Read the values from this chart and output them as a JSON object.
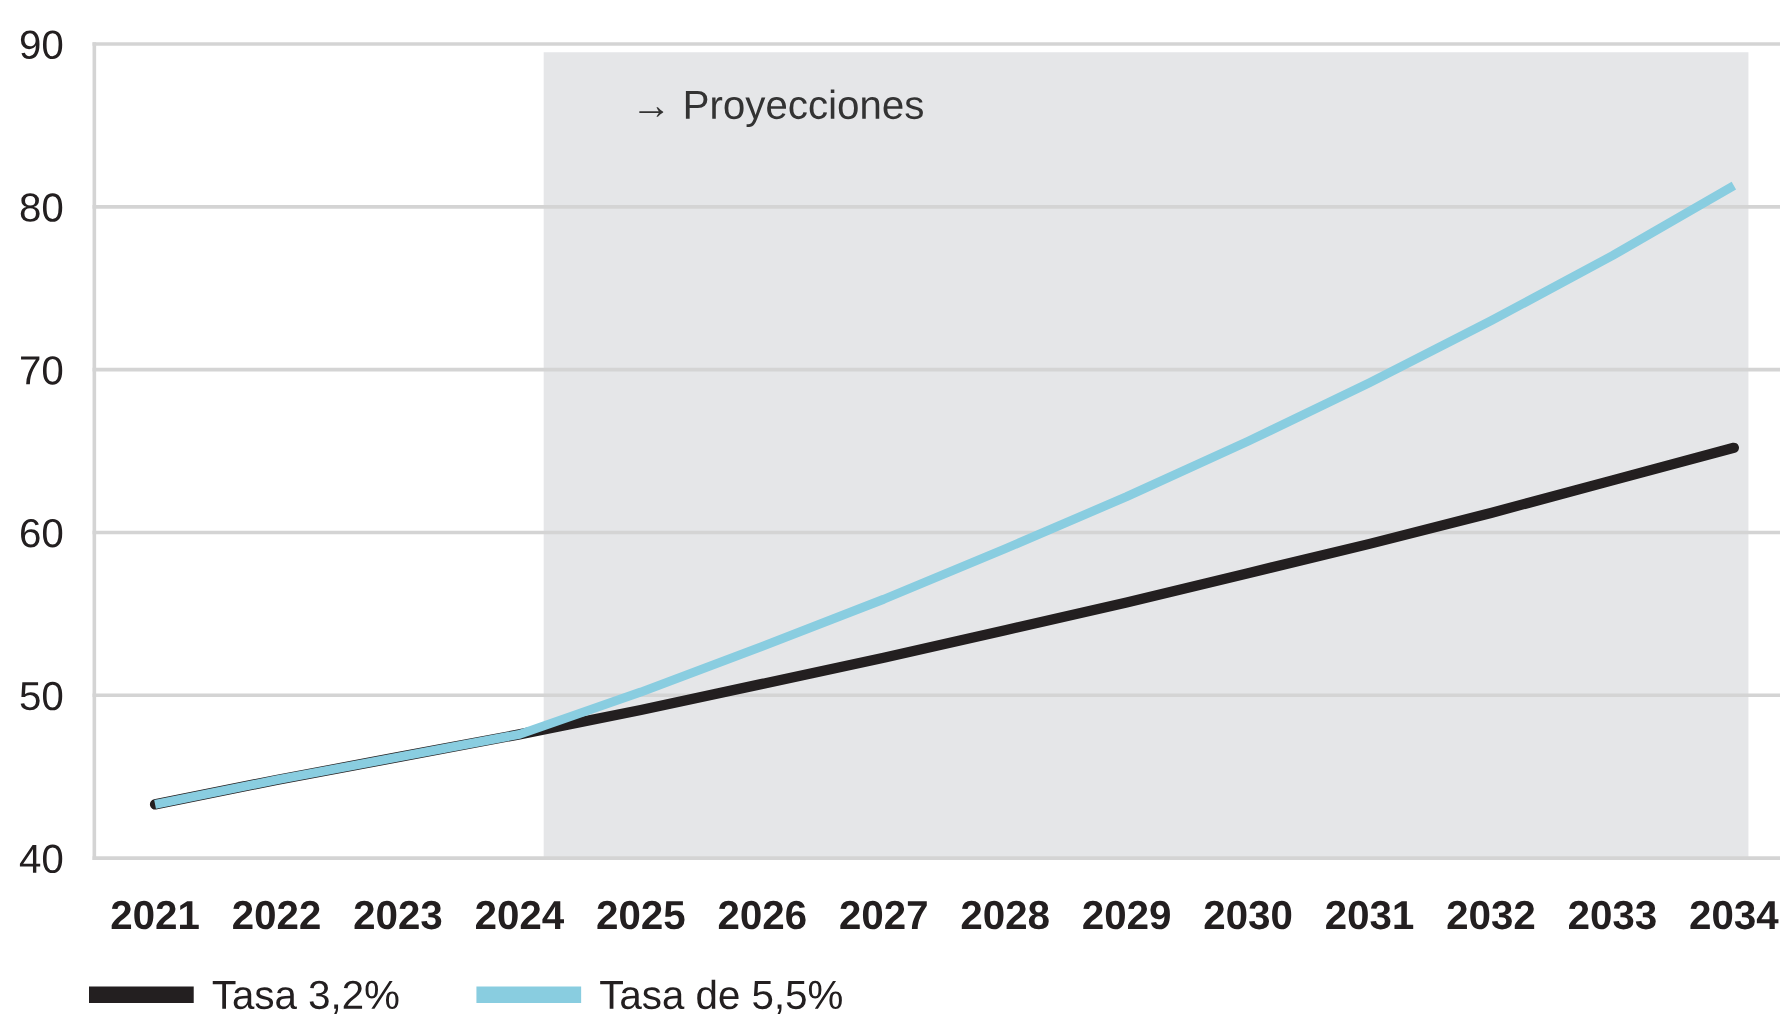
{
  "chart_data": {
    "type": "line",
    "categories": [
      "2021",
      "2022",
      "2023",
      "2024",
      "2025",
      "2026",
      "2027",
      "2028",
      "2029",
      "2030",
      "2031",
      "2032",
      "2033",
      "2034"
    ],
    "series": [
      {
        "name": "Tasa 3,2%",
        "color": "#231f20",
        "values": [
          43.3,
          44.8,
          46.2,
          47.6,
          49.1,
          50.7,
          52.3,
          54.0,
          55.7,
          57.5,
          59.3,
          61.2,
          63.2,
          65.2
        ]
      },
      {
        "name": "Tasa de 5,5%",
        "color": "#89cde0",
        "values": [
          43.3,
          44.8,
          46.2,
          47.6,
          50.2,
          53.0,
          55.9,
          59.0,
          62.2,
          65.6,
          69.2,
          73.0,
          77.0,
          81.3
        ]
      }
    ],
    "ylim": [
      40,
      90
    ],
    "yticks": [
      40,
      50,
      60,
      70,
      80,
      90
    ],
    "bands": [
      {
        "axis": "x",
        "from": "2024",
        "to": "2034",
        "color": "#e5e6e8",
        "label": "→ Proyecciones"
      }
    ],
    "grid": "y",
    "legend": "bottom",
    "marker": "none",
    "line_style": "solid"
  }
}
